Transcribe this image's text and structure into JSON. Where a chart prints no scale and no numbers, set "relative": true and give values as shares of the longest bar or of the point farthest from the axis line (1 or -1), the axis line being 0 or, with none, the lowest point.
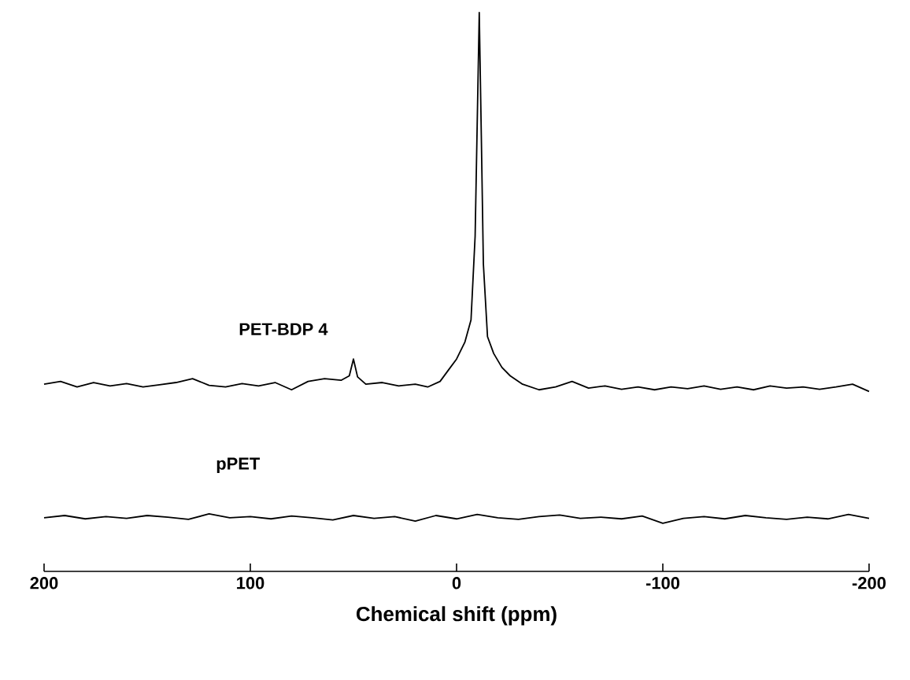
{
  "chart_data": {
    "type": "line",
    "xlabel": "Chemical shift (ppm)",
    "relative": true,
    "xlim": [
      200,
      -200
    ],
    "xticks": [
      200,
      100,
      0,
      -100,
      -200
    ],
    "series": [
      {
        "name": "PET-BDP 4",
        "color": "#000000",
        "x": [
          200,
          192,
          184,
          176,
          168,
          160,
          152,
          144,
          136,
          128,
          120,
          112,
          104,
          96,
          88,
          80,
          72,
          64,
          56,
          52,
          50,
          48,
          44,
          36,
          28,
          20,
          14,
          8,
          4,
          0,
          -4,
          -7,
          -9,
          -10,
          -11,
          -12,
          -13,
          -15,
          -18,
          -22,
          -26,
          -32,
          -40,
          -48,
          -56,
          -64,
          -72,
          -80,
          -88,
          -96,
          -104,
          -112,
          -120,
          -128,
          -136,
          -144,
          -152,
          -160,
          -168,
          -176,
          -184,
          -192,
          -200
        ],
        "values": [
          0.335,
          0.34,
          0.33,
          0.338,
          0.332,
          0.336,
          0.33,
          0.334,
          0.338,
          0.345,
          0.333,
          0.33,
          0.336,
          0.332,
          0.338,
          0.325,
          0.34,
          0.345,
          0.342,
          0.35,
          0.38,
          0.348,
          0.335,
          0.338,
          0.332,
          0.335,
          0.33,
          0.34,
          0.36,
          0.38,
          0.41,
          0.45,
          0.6,
          0.8,
          1,
          0.78,
          0.55,
          0.42,
          0.39,
          0.365,
          0.35,
          0.335,
          0.325,
          0.33,
          0.34,
          0.328,
          0.332,
          0.326,
          0.33,
          0.325,
          0.33,
          0.327,
          0.332,
          0.326,
          0.33,
          0.325,
          0.332,
          0.328,
          0.33,
          0.326,
          0.33,
          0.335,
          0.322
        ]
      },
      {
        "name": "pPET",
        "color": "#000000",
        "x": [
          200,
          190,
          180,
          170,
          160,
          150,
          140,
          130,
          120,
          110,
          100,
          90,
          80,
          70,
          60,
          50,
          40,
          30,
          20,
          10,
          0,
          -10,
          -20,
          -30,
          -40,
          -50,
          -60,
          -70,
          -80,
          -90,
          -100,
          -110,
          -120,
          -130,
          -140,
          -150,
          -160,
          -170,
          -180,
          -190,
          -200
        ],
        "values": [
          0.096,
          0.1,
          0.094,
          0.098,
          0.095,
          0.1,
          0.097,
          0.093,
          0.103,
          0.096,
          0.098,
          0.094,
          0.099,
          0.096,
          0.092,
          0.1,
          0.095,
          0.098,
          0.09,
          0.1,
          0.094,
          0.102,
          0.096,
          0.093,
          0.098,
          0.101,
          0.095,
          0.097,
          0.094,
          0.099,
          0.086,
          0.095,
          0.098,
          0.094,
          0.1,
          0.096,
          0.093,
          0.097,
          0.094,
          0.102,
          0.095
        ]
      }
    ]
  }
}
